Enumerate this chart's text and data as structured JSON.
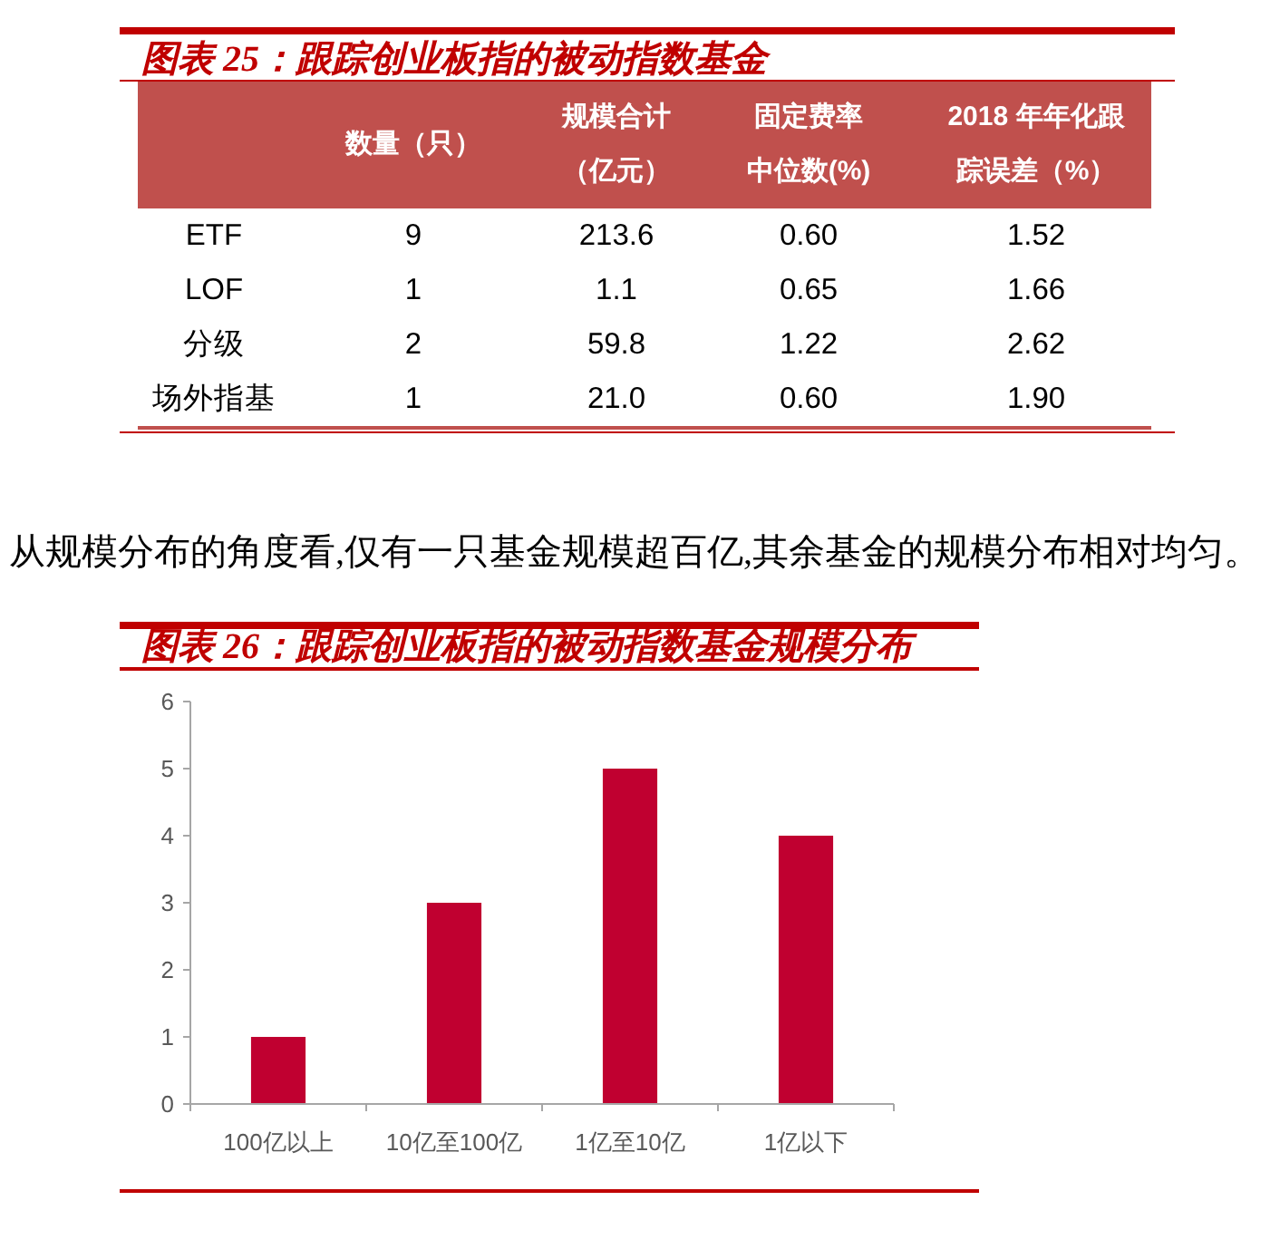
{
  "chart_data": [
    {
      "type": "other",
      "title": "图表 25：跟踪创业板指的被动指数基金",
      "categories": [
        "数量（只）",
        "规模合计（亿元）",
        "固定费率中位数(%)",
        "2018 年年化跟踪误差（%）"
      ],
      "y_categories": [
        "ETF",
        "LOF",
        "分级",
        "场外指基"
      ],
      "cell_labels": [
        [
          "9",
          "213.6",
          "0.60",
          "1.52"
        ],
        [
          "1",
          "1.1",
          "0.65",
          "1.66"
        ],
        [
          "2",
          "59.8",
          "1.22",
          "2.62"
        ],
        [
          "1",
          "21.0",
          "0.60",
          "1.90"
        ]
      ]
    },
    {
      "type": "other",
      "annotations": [
        "从规模分布的角度看,仅有一只基金规模超百亿,其余基金的规模分布相对均匀。"
      ]
    },
    {
      "type": "bar",
      "title": "图表 26：跟踪创业板指的被动指数基金规模分布",
      "categories": [
        "100亿以上",
        "10亿至100亿",
        "1亿至10亿",
        "1亿以下"
      ],
      "values": [
        1,
        3,
        5,
        4
      ],
      "color": "#c00030",
      "ylim": [
        0,
        6
      ],
      "yticks": [
        0,
        1,
        2,
        3,
        4,
        5,
        6
      ],
      "grid": false
    }
  ]
}
